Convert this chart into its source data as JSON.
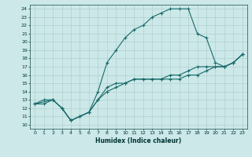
{
  "xlabel": "Humidex (Indice chaleur)",
  "bg_color": "#cce8e8",
  "grid_color": "#b0d0d0",
  "line_color": "#1a6b6b",
  "xlim": [
    -0.5,
    23.5
  ],
  "ylim": [
    9.5,
    24.5
  ],
  "xticks": [
    0,
    1,
    2,
    3,
    4,
    5,
    6,
    7,
    8,
    9,
    10,
    11,
    12,
    13,
    14,
    15,
    16,
    17,
    18,
    19,
    20,
    21,
    22,
    23
  ],
  "yticks": [
    10,
    11,
    12,
    13,
    14,
    15,
    16,
    17,
    18,
    19,
    20,
    21,
    22,
    23,
    24
  ],
  "line1_x": [
    0,
    1,
    2,
    3,
    4,
    5,
    6,
    7,
    8,
    9,
    10,
    11,
    12,
    13,
    14,
    15,
    16,
    17,
    18,
    19,
    20,
    21,
    22,
    23
  ],
  "line1_y": [
    12.5,
    13.0,
    13.0,
    12.0,
    10.5,
    11.0,
    11.5,
    14.0,
    17.5,
    19.0,
    20.5,
    21.5,
    22.0,
    23.0,
    23.5,
    24.0,
    24.0,
    24.0,
    21.0,
    20.5,
    17.5,
    17.0,
    17.5,
    18.5
  ],
  "line2_x": [
    0,
    2,
    3,
    4,
    5,
    6,
    7,
    8,
    9,
    10,
    11,
    12,
    13,
    14,
    15,
    16,
    17,
    18,
    19,
    20,
    21,
    22,
    23
  ],
  "line2_y": [
    12.5,
    13.0,
    12.0,
    10.5,
    11.0,
    11.5,
    13.0,
    14.5,
    15.0,
    15.0,
    15.5,
    15.5,
    15.5,
    15.5,
    16.0,
    16.0,
    16.5,
    17.0,
    17.0,
    17.0,
    17.0,
    17.5,
    18.5
  ],
  "line3_x": [
    0,
    1,
    2,
    3,
    4,
    5,
    6,
    7,
    8,
    9,
    10,
    11,
    12,
    13,
    14,
    15,
    16,
    17,
    18,
    19,
    20,
    21,
    22,
    23
  ],
  "line3_y": [
    12.5,
    12.5,
    13.0,
    12.0,
    10.5,
    11.0,
    11.5,
    13.0,
    14.0,
    14.5,
    15.0,
    15.5,
    15.5,
    15.5,
    15.5,
    15.5,
    15.5,
    16.0,
    16.0,
    16.5,
    17.0,
    17.0,
    17.5,
    18.5
  ]
}
